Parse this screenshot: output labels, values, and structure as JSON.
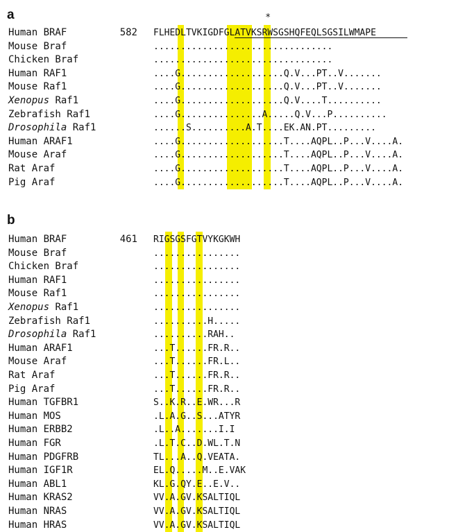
{
  "panels": [
    {
      "label": "a",
      "star": "*",
      "rows": [
        {
          "species": "Human BRAF",
          "start": "582",
          "seq": "FLHEDLTVKIGDFGLATVKSRWSGSHQFEQLSGSILWMAPE"
        },
        {
          "species": "Mouse Braf",
          "start": "",
          "seq": "................................."
        },
        {
          "species": "Chicken Braf",
          "start": "",
          "seq": "................................."
        },
        {
          "species": "Human RAF1",
          "start": "",
          "seq": "....G...................Q.V...PT..V......."
        },
        {
          "species": "Mouse Raf1",
          "start": "",
          "seq": "....G...................Q.V...PT..V......."
        },
        {
          "species_it": "Xenopus",
          "species": "Raf1",
          "start": "",
          "seq": "....G...................Q.V....T.........."
        },
        {
          "species": "Zebrafish Raf1",
          "start": "",
          "seq": "....G...............A.....Q.V...P.........."
        },
        {
          "species_it": "Drosophila",
          "species": "Raf1",
          "start": "",
          "seq": "......S..........A.T....EK.AN.PT........."
        },
        {
          "species": "Human ARAF1",
          "start": "",
          "seq": "....G...................T....AQPL..P...V....A."
        },
        {
          "species": "Mouse Araf",
          "start": "",
          "seq": "....G...................T....AQPL..P...V....A."
        },
        {
          "species": "Rat Araf",
          "start": "",
          "seq": "....G...................T....AQPL..P...V....A."
        },
        {
          "species": "Pig Araf",
          "start": "",
          "seq": "....G...................T....AQPL..P...V....A."
        }
      ]
    },
    {
      "label": "b",
      "rows": [
        {
          "species": "Human BRAF",
          "start": "461",
          "seq": "RIGSGSFGTVYKGKWH"
        },
        {
          "species": "Mouse Braf",
          "start": "",
          "seq": "................"
        },
        {
          "species": "Chicken Braf",
          "start": "",
          "seq": "................"
        },
        {
          "species": "Human RAF1",
          "start": "",
          "seq": "................"
        },
        {
          "species": "Mouse Raf1",
          "start": "",
          "seq": "................"
        },
        {
          "species_it": "Xenopus",
          "species": "Raf1",
          "start": "",
          "seq": "................"
        },
        {
          "species": "Zebrafish Raf1",
          "start": "",
          "seq": "..........H....."
        },
        {
          "species_it": "Drosophila",
          "species": "Raf1",
          "start": "",
          "seq": "..........RAH.."
        },
        {
          "species": "Human ARAF1",
          "start": "",
          "seq": "...T......FR.R.."
        },
        {
          "species": "Mouse Araf",
          "start": "",
          "seq": "...T......FR.L.."
        },
        {
          "species": "Rat Araf",
          "start": "",
          "seq": "...T......FR.R.."
        },
        {
          "species": "Pig Araf",
          "start": "",
          "seq": "...T......FR.R.."
        },
        {
          "species": "Human TGFBR1",
          "start": "",
          "seq": "S..K.R..E.WR...R"
        },
        {
          "species": "Human MOS",
          "start": "",
          "seq": ".L.A.G..S...ATYR"
        },
        {
          "species": "Human ERBB2",
          "start": "",
          "seq": ".L..A.......I.I"
        },
        {
          "species": "Human FGR",
          "start": "",
          "seq": ".L.T.C..D.WL.T.N"
        },
        {
          "species": "Human PDGFRB",
          "start": "",
          "seq": "TL...A..Q.VEATA."
        },
        {
          "species": "Human IGF1R",
          "start": "",
          "seq": "EL.Q.....M..E.VAK"
        },
        {
          "species": "Human ABL1",
          "start": "",
          "seq": "KL.G.QY.E..E.V.."
        },
        {
          "species": "Human KRAS2",
          "start": "",
          "seq": "VV.A.GV.KSALTIQL"
        },
        {
          "species": "Human NRAS",
          "start": "",
          "seq": "VV.A.GV.KSALTIQL"
        },
        {
          "species": "Human HRAS",
          "start": "",
          "seq": "VV.A.GV.KSALTIQL"
        }
      ]
    }
  ]
}
